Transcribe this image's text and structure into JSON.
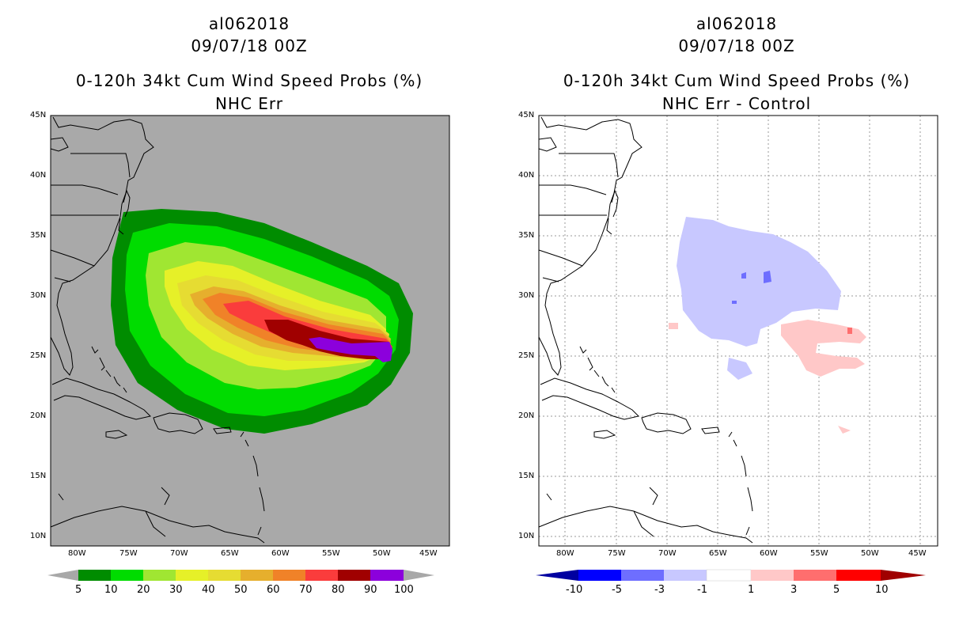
{
  "left_panel": {
    "title1": "al062018",
    "title2": "09/07/18 00Z",
    "title3": "0-120h 34kt Cum Wind Speed Probs (%)",
    "title4": "NHC Err"
  },
  "right_panel": {
    "title1": "al062018",
    "title2": "09/07/18 00Z",
    "title3": "0-120h 34kt Cum Wind Speed Probs (%)",
    "title4": "NHC Err - Control"
  },
  "lat_labels": [
    "45N",
    "40N",
    "35N",
    "30N",
    "25N",
    "20N",
    "15N",
    "10N"
  ],
  "lon_labels": [
    "80W",
    "75W",
    "70W",
    "65W",
    "60W",
    "55W",
    "50W",
    "45W"
  ],
  "left_colorbar": {
    "labels": [
      "5",
      "10",
      "20",
      "30",
      "40",
      "50",
      "60",
      "70",
      "80",
      "90",
      "100"
    ],
    "colors": [
      "#008c00",
      "#00dc00",
      "#a0e632",
      "#e6f028",
      "#e6dc32",
      "#e6af2d",
      "#f08228",
      "#fa3c3c",
      "#a00000",
      "#8c00dc"
    ],
    "end_color": "#a8a8a8"
  },
  "right_colorbar": {
    "labels": [
      "-10",
      "-5",
      "-3",
      "-1",
      "1",
      "3",
      "5",
      "10"
    ],
    "colors": [
      "#0000a0",
      "#0000ff",
      "#6e6eff",
      "#c8c8ff",
      "#ffffff",
      "#ffc8c8",
      "#ff6e6e",
      "#ff0000",
      "#a00000"
    ]
  }
}
